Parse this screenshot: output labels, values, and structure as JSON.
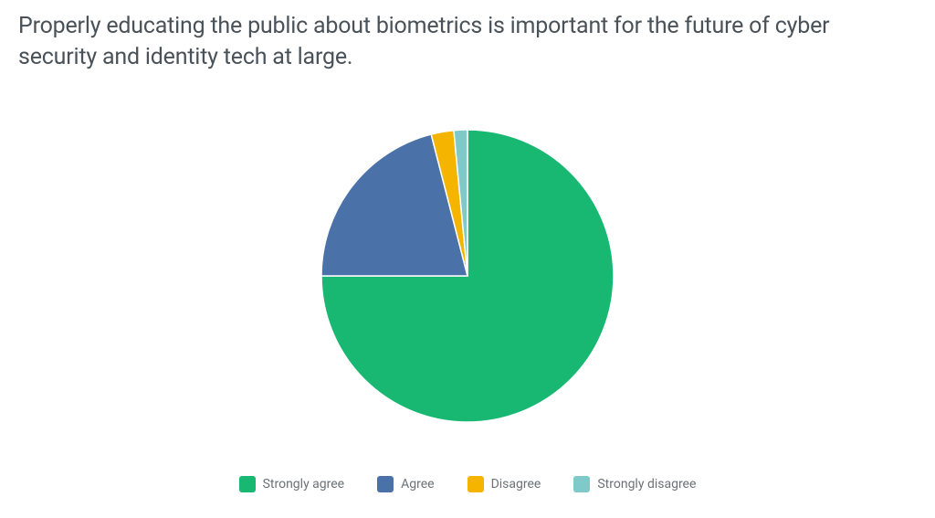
{
  "chart": {
    "type": "pie",
    "title": "Properly educating the public about biometrics is important for the future of cyber security and identity tech at large.",
    "title_fontsize": 25,
    "title_color": "#4a5259",
    "background_color": "#ffffff",
    "pie_radius": 160,
    "start_angle_deg": 0,
    "stroke_width": 1.5,
    "stroke_color": "#ffffff",
    "slices": [
      {
        "label": "Strongly agree",
        "value": 75,
        "color": "#18b872"
      },
      {
        "label": "Agree",
        "value": 21,
        "color": "#4b72a8"
      },
      {
        "label": "Disagree",
        "value": 2.5,
        "color": "#f4b400"
      },
      {
        "label": "Strongly disagree",
        "value": 1.5,
        "color": "#7fc9c8"
      }
    ],
    "legend": {
      "position": "bottom",
      "swatch_size": 18,
      "swatch_radius": 3,
      "label_fontsize": 14,
      "label_color": "#6b7177",
      "gap": 36
    }
  }
}
